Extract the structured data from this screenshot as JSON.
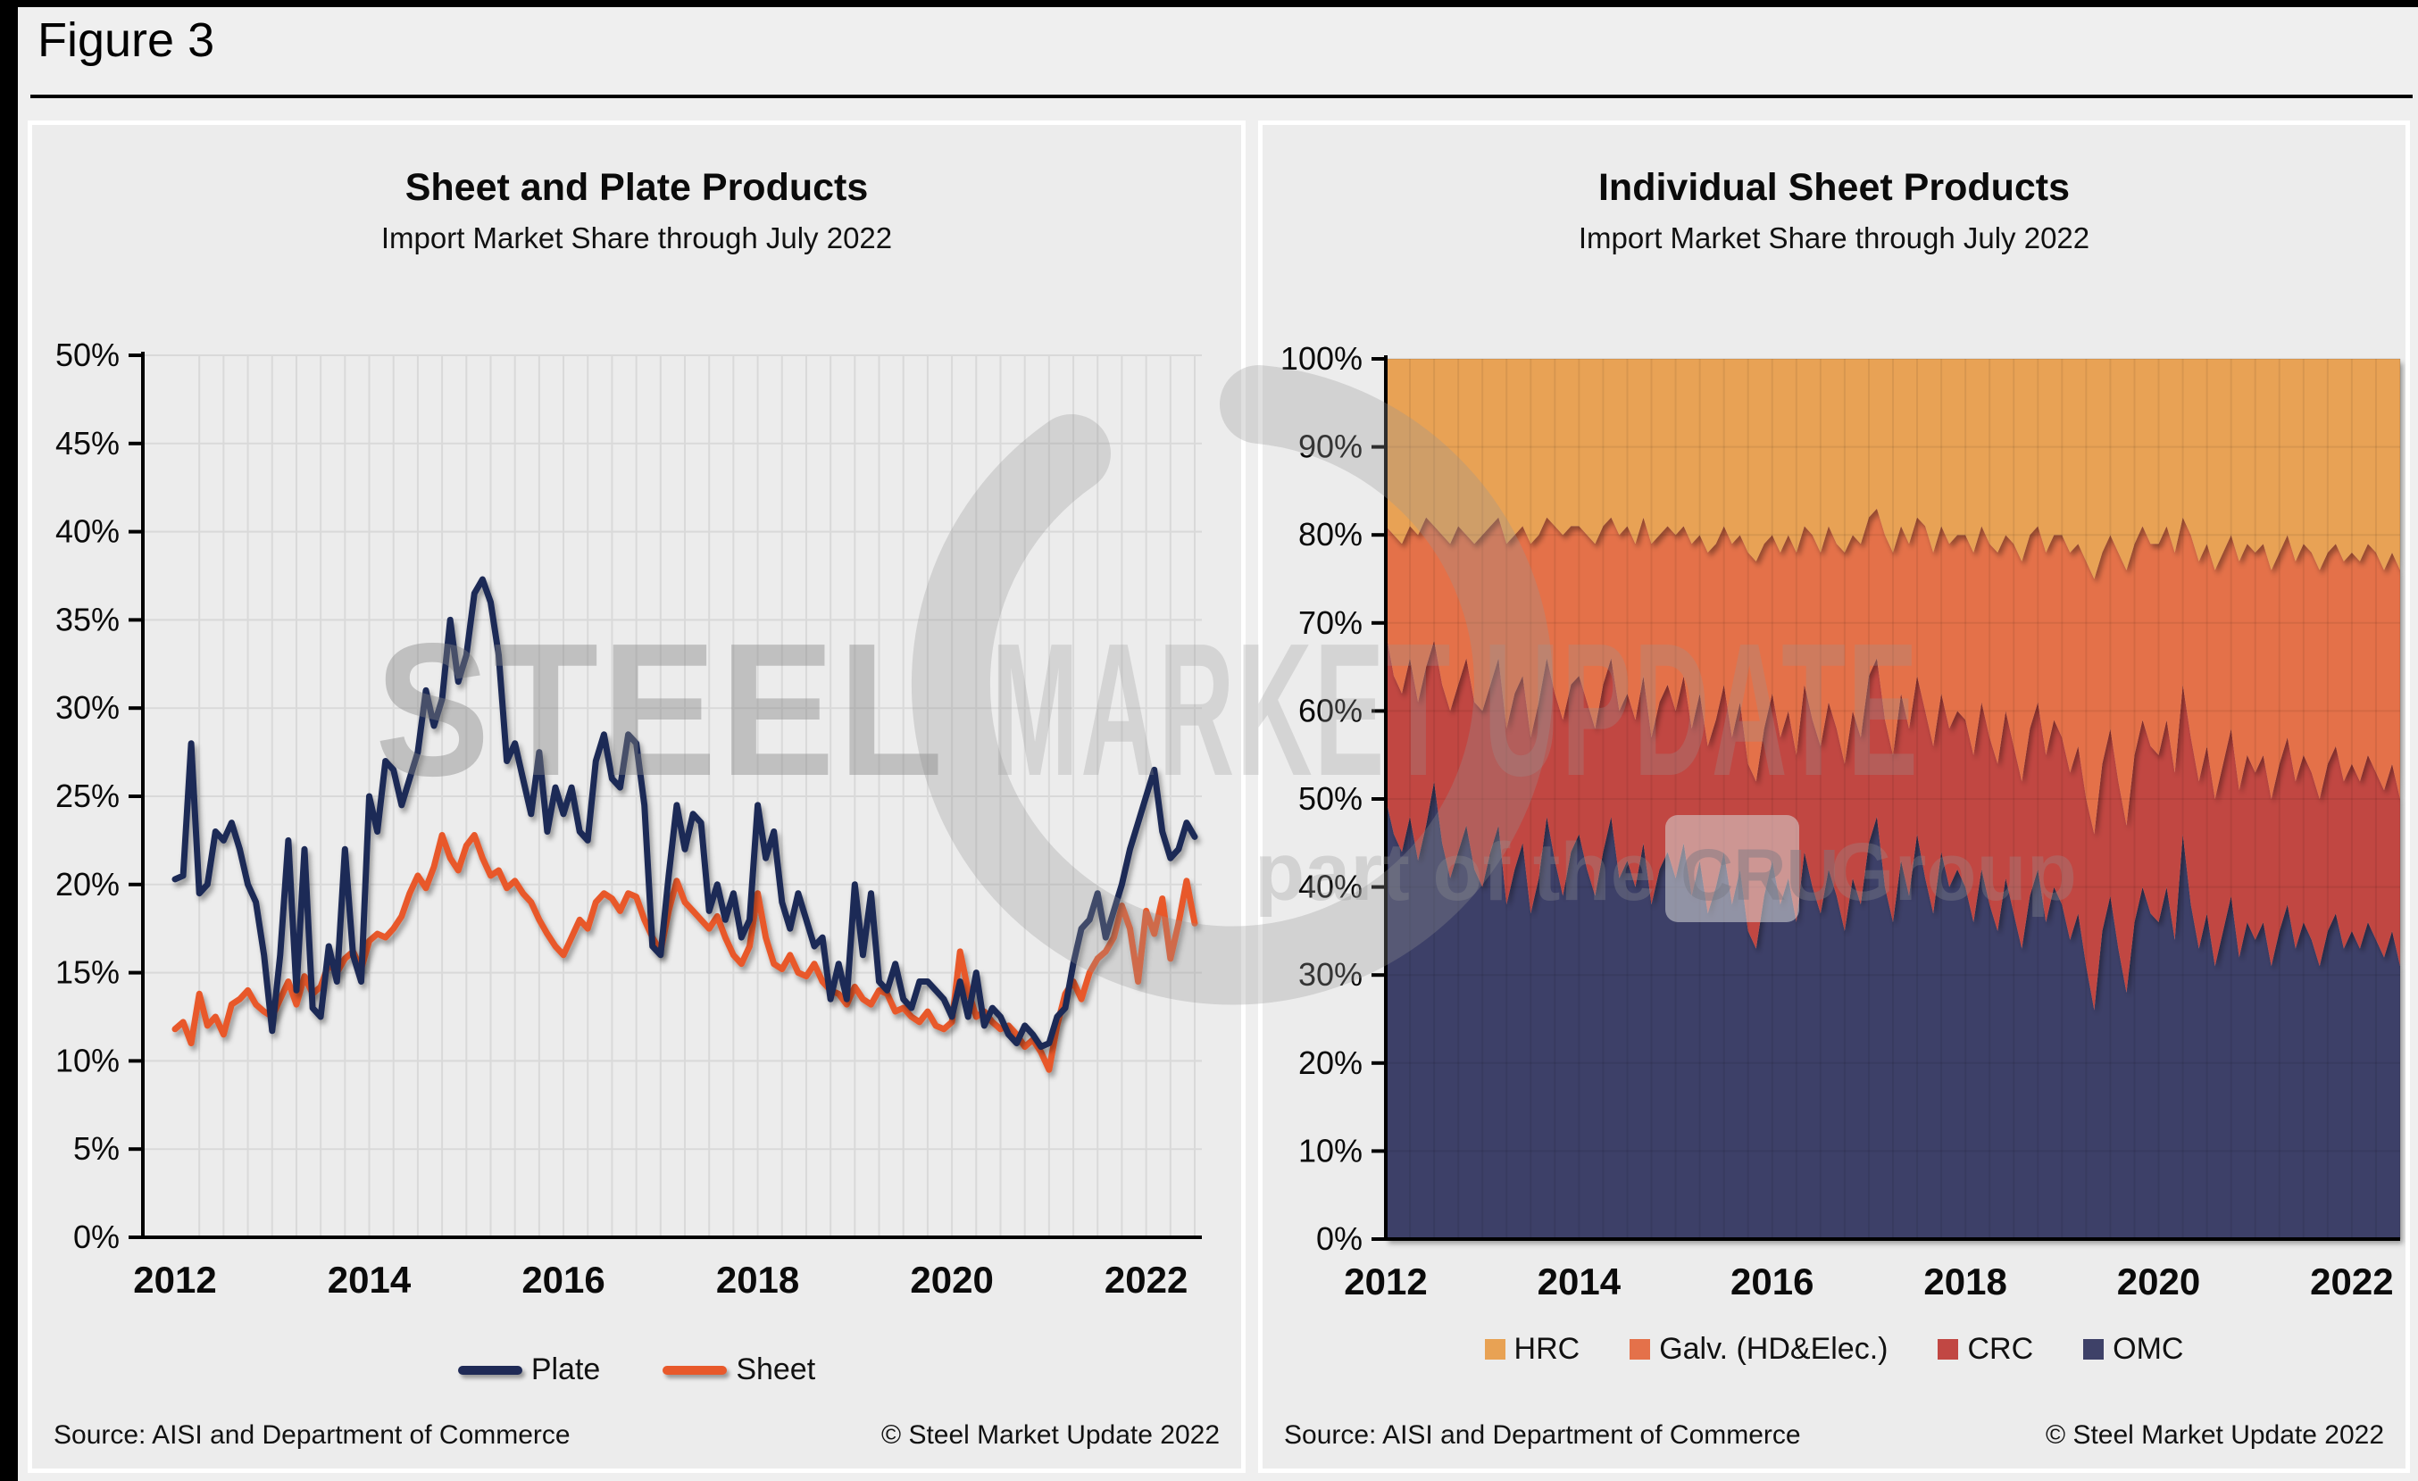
{
  "figure_label": "Figure 3",
  "watermark": {
    "line1_bold": "STEEL",
    "line1_rest": " MARKET UPDATE",
    "line2_pre": "part of the",
    "line2_box": "CRU",
    "line2_post": "Group"
  },
  "panels": {
    "left": {
      "source": "Source: AISI and Department of Commerce",
      "copyright": "© Steel Market Update 2022"
    },
    "right": {
      "source": "Source: AISI and Department of Commerce",
      "copyright": "© Steel Market Update 2022"
    }
  },
  "chart_data": [
    {
      "type": "line",
      "title": "Sheet and Plate Products",
      "subtitle": "Import Market Share through July 2022",
      "x_months": {
        "start": "2012-01",
        "end": "2022-07",
        "points": 127
      },
      "x_ticks": [
        2012,
        2014,
        2016,
        2018,
        2020,
        2022
      ],
      "ylim": [
        0,
        50
      ],
      "y_step": 5,
      "y_unit": "%",
      "grid": {
        "horizontal": true,
        "vertical_every_months": 3
      },
      "legend_position": "bottom",
      "series": [
        {
          "name": "Sheet",
          "color": "#E8592B",
          "values": [
            11.8,
            12.2,
            11.0,
            13.8,
            12.0,
            12.5,
            11.5,
            13.2,
            13.5,
            14.0,
            13.2,
            12.8,
            12.5,
            13.5,
            14.5,
            13.2,
            14.8,
            13.8,
            14.2,
            15.5,
            15.0,
            15.8,
            16.2,
            15.2,
            16.8,
            17.2,
            17.0,
            17.5,
            18.2,
            19.5,
            20.5,
            19.8,
            21.0,
            22.8,
            21.5,
            20.8,
            22.2,
            22.8,
            21.5,
            20.5,
            20.8,
            19.8,
            20.2,
            19.5,
            19.0,
            18.0,
            17.2,
            16.5,
            16.0,
            17.0,
            18.0,
            17.5,
            19.0,
            19.5,
            19.2,
            18.5,
            19.5,
            19.3,
            18.0,
            17.0,
            16.2,
            18.5,
            20.2,
            19.0,
            18.5,
            18.0,
            17.5,
            18.2,
            17.0,
            16.0,
            15.5,
            16.5,
            19.5,
            17.0,
            15.5,
            15.2,
            16.0,
            15.0,
            14.8,
            15.5,
            14.5,
            14.0,
            13.8,
            13.2,
            14.2,
            13.5,
            13.2,
            14.0,
            13.8,
            12.8,
            13.0,
            12.5,
            12.2,
            12.8,
            12.0,
            11.8,
            12.2,
            16.2,
            14.0,
            12.5,
            12.8,
            12.2,
            11.8,
            12.0,
            11.5,
            10.8,
            11.2,
            10.5,
            9.5,
            12.0,
            13.8,
            14.5,
            13.5,
            15.0,
            15.8,
            16.2,
            17.0,
            18.8,
            17.5,
            14.5,
            18.5,
            17.2,
            19.2,
            15.8,
            17.8,
            20.2,
            17.8
          ]
        },
        {
          "name": "Plate",
          "color": "#1F2A56",
          "values": [
            20.3,
            20.5,
            28.0,
            19.5,
            20.0,
            23.0,
            22.5,
            23.5,
            22.0,
            20.0,
            19.0,
            16.0,
            11.7,
            16.0,
            22.5,
            14.0,
            22.0,
            13.0,
            12.5,
            16.5,
            14.5,
            22.0,
            16.0,
            14.5,
            25.0,
            23.0,
            27.0,
            26.5,
            24.5,
            26.0,
            27.5,
            31.0,
            29.0,
            30.5,
            35.0,
            31.5,
            33.0,
            36.5,
            37.3,
            36.0,
            33.0,
            27.0,
            28.0,
            26.0,
            24.0,
            27.5,
            23.0,
            25.5,
            24.0,
            25.5,
            23.0,
            22.5,
            27.0,
            28.5,
            26.0,
            25.5,
            28.5,
            28.0,
            24.5,
            16.5,
            16.0,
            20.5,
            24.5,
            22.0,
            24.0,
            23.5,
            18.5,
            20.0,
            18.0,
            19.5,
            17.0,
            18.0,
            24.5,
            21.5,
            23.0,
            19.0,
            17.5,
            19.5,
            18.0,
            16.5,
            17.0,
            13.5,
            15.5,
            13.5,
            20.0,
            16.0,
            19.5,
            14.5,
            14.0,
            15.5,
            13.5,
            13.0,
            14.5,
            14.5,
            14.0,
            13.5,
            12.5,
            14.5,
            12.5,
            15.0,
            12.0,
            13.0,
            12.5,
            11.5,
            11.0,
            12.0,
            11.5,
            10.8,
            11.0,
            12.5,
            13.0,
            15.5,
            17.5,
            18.0,
            19.5,
            17.0,
            18.5,
            20.0,
            22.0,
            23.5,
            25.0,
            26.5,
            23.0,
            21.5,
            22.0,
            23.5,
            22.7
          ]
        }
      ]
    },
    {
      "type": "area",
      "stacked": true,
      "percent": true,
      "title": "Individual Sheet Products",
      "subtitle": "Import Market Share through July 2022",
      "x_months": {
        "start": "2012-01",
        "end": "2022-07",
        "points": 127
      },
      "x_ticks": [
        2012,
        2014,
        2016,
        2018,
        2020,
        2022
      ],
      "ylim": [
        0,
        100
      ],
      "y_step": 10,
      "y_unit": "%",
      "grid": {
        "horizontal": true,
        "vertical_every_months": 3
      },
      "legend_position": "bottom",
      "legend_order": [
        "HRC",
        "Galv. (HD&Elec.)",
        "CRC",
        "OMC"
      ],
      "colors": {
        "HRC": "#E8A254",
        "Galv. (HD&Elec.)": "#E4714A",
        "CRC": "#C14743",
        "OMC": "#3E4168"
      },
      "series_order_bottom_to_top": [
        "OMC",
        "CRC",
        "Galv. (HD&Elec.)",
        "HRC"
      ],
      "note": "values below are cumulative stacked percentages; HRC fills the remainder up to 100%",
      "cumulative_percent": {
        "OMC": [
          50,
          46,
          44,
          48,
          43,
          47,
          52,
          45,
          41,
          44,
          47,
          42,
          40,
          44,
          47,
          38,
          42,
          45,
          37,
          41,
          48,
          43,
          39,
          44,
          46,
          42,
          39,
          44,
          48,
          41,
          43,
          40,
          45,
          38,
          42,
          44,
          41,
          45,
          39,
          43,
          37,
          40,
          44,
          38,
          42,
          35,
          33,
          39,
          43,
          38,
          41,
          36,
          44,
          40,
          37,
          42,
          39,
          35,
          41,
          38,
          45,
          48,
          40,
          36,
          43,
          39,
          46,
          41,
          37,
          44,
          40,
          42,
          40,
          36,
          42,
          38,
          35,
          41,
          37,
          33,
          39,
          42,
          36,
          40,
          38,
          34,
          37,
          31,
          26,
          35,
          39,
          33,
          28,
          36,
          40,
          37,
          36,
          40,
          34,
          46,
          38,
          33,
          37,
          31,
          35,
          39,
          32,
          36,
          34,
          36,
          31,
          35,
          38,
          33,
          36,
          34,
          31,
          35,
          37,
          33,
          35,
          33,
          36,
          34,
          32,
          35,
          31
        ],
        "CRC": [
          69,
          64,
          62,
          66,
          61,
          65,
          68,
          63,
          60,
          63,
          66,
          61,
          60,
          63,
          66,
          58,
          62,
          64,
          57,
          61,
          66,
          62,
          59,
          63,
          64,
          61,
          58,
          63,
          66,
          60,
          62,
          59,
          64,
          57,
          61,
          63,
          60,
          64,
          58,
          62,
          56,
          59,
          63,
          57,
          61,
          54,
          52,
          58,
          62,
          57,
          60,
          55,
          63,
          59,
          56,
          61,
          58,
          54,
          60,
          57,
          64,
          66,
          59,
          55,
          62,
          58,
          64,
          60,
          56,
          62,
          58,
          60,
          59,
          55,
          61,
          57,
          54,
          60,
          56,
          52,
          58,
          61,
          55,
          59,
          57,
          53,
          56,
          50,
          46,
          54,
          58,
          52,
          47,
          55,
          59,
          56,
          55,
          59,
          53,
          63,
          57,
          52,
          56,
          50,
          54,
          58,
          51,
          55,
          53,
          55,
          50,
          54,
          57,
          52,
          55,
          53,
          50,
          54,
          56,
          52,
          54,
          52,
          55,
          53,
          51,
          54,
          50
        ],
        "Galv. (HD&Elec.)": [
          81,
          80,
          79,
          81,
          80,
          82,
          81,
          80,
          79,
          81,
          80,
          79,
          80,
          81,
          82,
          79,
          80,
          81,
          79,
          80,
          82,
          81,
          80,
          81,
          81,
          80,
          79,
          81,
          82,
          80,
          81,
          79,
          82,
          79,
          80,
          81,
          80,
          81,
          79,
          80,
          78,
          79,
          81,
          79,
          80,
          78,
          77,
          79,
          80,
          78,
          80,
          78,
          81,
          80,
          78,
          81,
          79,
          78,
          80,
          79,
          82,
          83,
          80,
          78,
          81,
          79,
          82,
          81,
          78,
          81,
          79,
          80,
          80,
          78,
          81,
          79,
          78,
          80,
          79,
          77,
          80,
          81,
          78,
          80,
          80,
          78,
          79,
          77,
          75,
          78,
          80,
          78,
          76,
          79,
          81,
          79,
          79,
          81,
          78,
          82,
          80,
          77,
          79,
          76,
          78,
          80,
          77,
          79,
          78,
          79,
          76,
          78,
          80,
          77,
          79,
          78,
          76,
          78,
          79,
          77,
          78,
          77,
          79,
          78,
          76,
          78,
          76
        ]
      }
    }
  ]
}
